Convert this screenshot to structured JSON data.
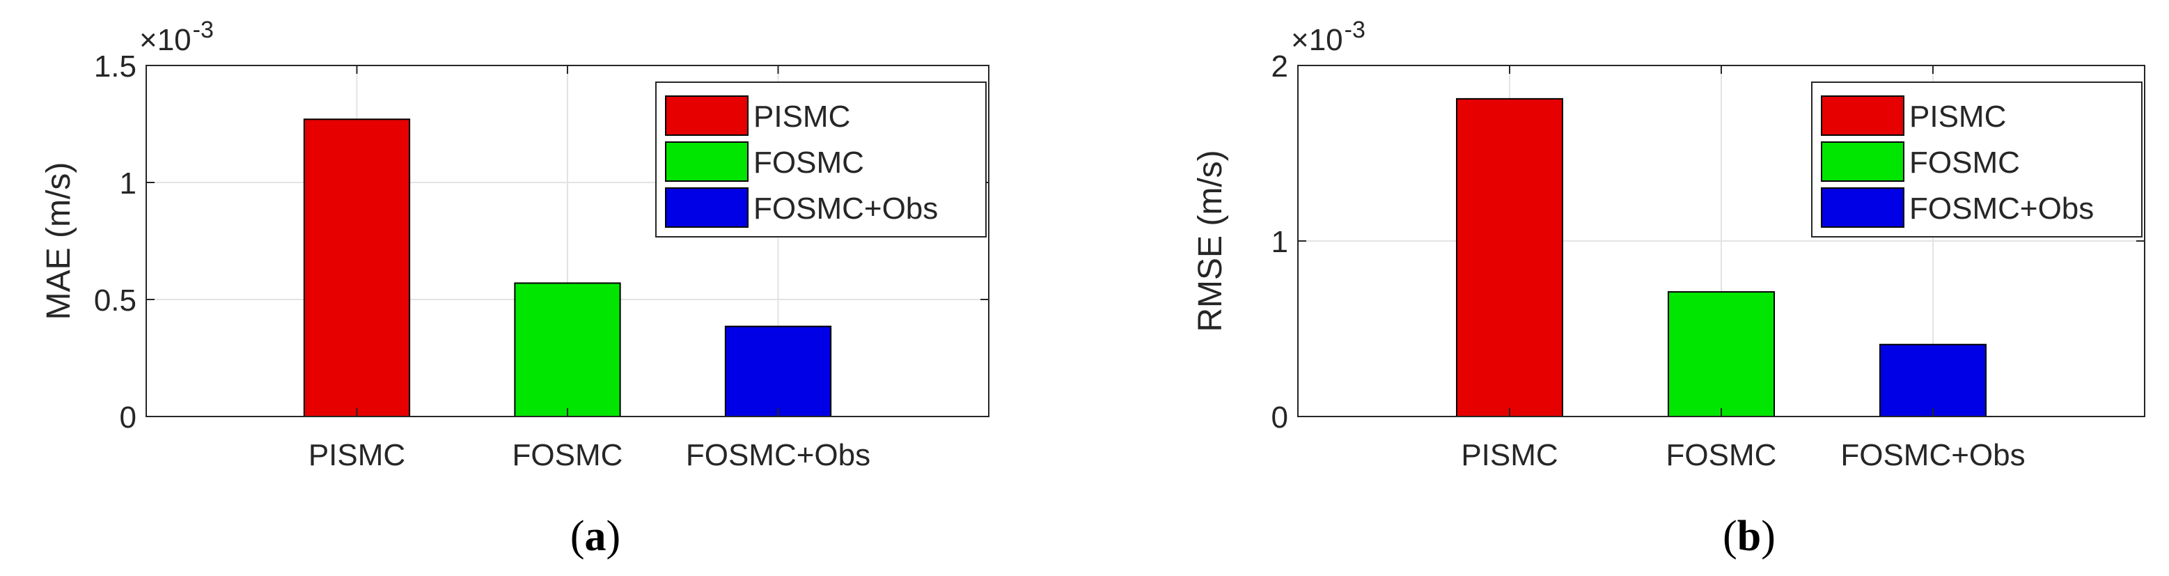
{
  "chart_data": [
    {
      "type": "bar",
      "caption_letter": "a",
      "ylabel": "MAE (m/s)",
      "y_multiplier": "×10",
      "y_multiplier_exponent": "-3",
      "categories": [
        "PISMC",
        "FOSMC",
        "FOSMC+Obs"
      ],
      "series": [
        {
          "name": "PISMC",
          "color": "#e60000",
          "values": [
            1.27,
            null,
            null
          ]
        },
        {
          "name": "FOSMC",
          "color": "#00e600",
          "values": [
            null,
            0.57,
            null
          ]
        },
        {
          "name": "FOSMC+Obs",
          "color": "#0000e6",
          "values": [
            null,
            null,
            0.385
          ]
        }
      ],
      "ylim": [
        0,
        1.5
      ],
      "yticks": [
        0,
        0.5,
        1,
        1.5
      ],
      "grid": true,
      "legend": "upper right"
    },
    {
      "type": "bar",
      "caption_letter": "b",
      "ylabel": "RMSE (m/s)",
      "y_multiplier": "×10",
      "y_multiplier_exponent": "-3",
      "categories": [
        "PISMC",
        "FOSMC",
        "FOSMC+Obs"
      ],
      "series": [
        {
          "name": "PISMC",
          "color": "#e60000",
          "values": [
            1.81,
            null,
            null
          ]
        },
        {
          "name": "FOSMC",
          "color": "#00e600",
          "values": [
            null,
            0.71,
            null
          ]
        },
        {
          "name": "FOSMC+Obs",
          "color": "#0000e6",
          "values": [
            null,
            null,
            0.41
          ]
        }
      ],
      "ylim": [
        0,
        2
      ],
      "yticks": [
        0,
        1,
        2
      ],
      "grid": true,
      "legend": "upper right"
    }
  ]
}
